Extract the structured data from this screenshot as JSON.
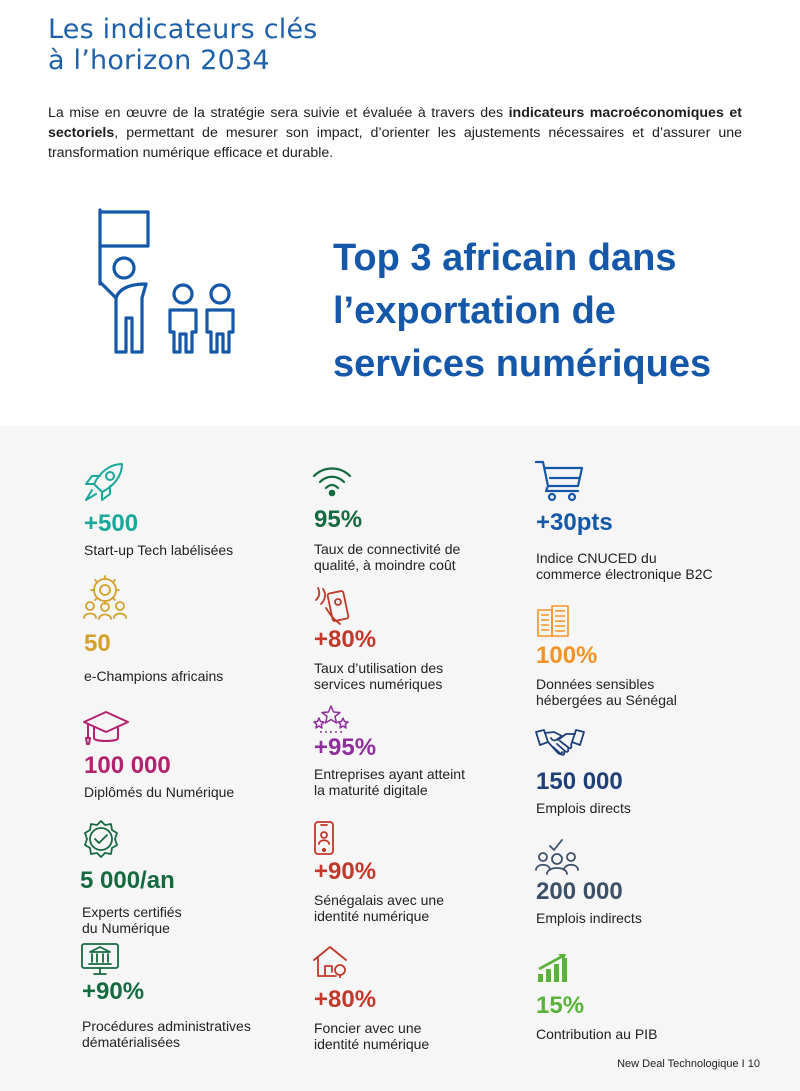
{
  "header": {
    "title_line1": "Les indicateurs clés",
    "title_line2": "à l’horizon 2034"
  },
  "intro": {
    "part1": "La mise en œuvre de la stratégie sera suivie et évaluée à travers des ",
    "bold": "indicateurs macroéconomiques et sectoriels",
    "part2": ", permettant de mesurer son impact, d’orienter les ajustements nécessaires et d’assurer une transformation numérique efficace et durable."
  },
  "hero": {
    "icon": "people-with-flag-icon",
    "line1": "Top 3 africain dans",
    "line2": "l’exportation de",
    "line3": "services numériques"
  },
  "indicators": {
    "col1": [
      {
        "icon": "rocket-icon",
        "color": "#1aa89b",
        "value": "+500",
        "label": [
          "Start-up Tech labélisées"
        ]
      },
      {
        "icon": "e-champions-icon",
        "color": "#d4a02b",
        "value": "50",
        "label": [
          "e-Champions africains"
        ]
      },
      {
        "icon": "graduation-cap-icon",
        "color": "#b2226e",
        "value": "100 000",
        "label": [
          "Diplômés du Numérique"
        ]
      },
      {
        "icon": "certified-badge-icon",
        "color": "#166a3f",
        "value": "5 000/an",
        "label": [
          "Experts certifiés",
          "du Numérique"
        ]
      },
      {
        "icon": "government-computer-icon",
        "color": "#166a3f",
        "value": "+90%",
        "label": [
          "Procédures administratives",
          "dématérialisées"
        ]
      }
    ],
    "col2": [
      {
        "icon": "wifi-icon",
        "color": "#166a3f",
        "value": "95%",
        "label": [
          "Taux de connectivité de",
          "qualité, à moindre coût"
        ]
      },
      {
        "icon": "contactless-phone-icon",
        "color": "#c0392b",
        "value": "+80%",
        "label": [
          "Taux d’utilisation des",
          "services numériques"
        ]
      },
      {
        "icon": "stars-icon",
        "color": "#8e2f9b",
        "value": "+95%",
        "label": [
          "Entreprises ayant atteint",
          "la maturité digitale"
        ]
      },
      {
        "icon": "mobile-id-icon",
        "color": "#c0392b",
        "value": "+90%",
        "label": [
          "Sénégalais avec une",
          "identité numérique"
        ]
      },
      {
        "icon": "land-house-icon",
        "color": "#c0392b",
        "value": "+80%",
        "label": [
          "Foncier avec une",
          "identité numérique"
        ]
      }
    ],
    "col3": [
      {
        "icon": "shopping-cart-icon",
        "color": "#1557a8",
        "value": "+30pts",
        "label": [
          "Indice CNUCED du",
          "commerce électronique B2C"
        ]
      },
      {
        "icon": "building-icon",
        "color": "#f39325",
        "value": "100%",
        "label": [
          "Données sensibles",
          "hébergées au Sénégal"
        ]
      },
      {
        "icon": "handshake-icon",
        "color": "#1f3f78",
        "value": "150 000",
        "label": [
          "Emplois directs"
        ]
      },
      {
        "icon": "team-icon",
        "color": "#3e5068",
        "value": "200 000",
        "label": [
          "Emplois indirects"
        ]
      },
      {
        "icon": "growth-chart-icon",
        "color": "#5ab23a",
        "value": "15%",
        "label": [
          "Contribution au PIB"
        ]
      }
    ]
  },
  "footer": {
    "text": "New Deal Technologique I 10"
  }
}
